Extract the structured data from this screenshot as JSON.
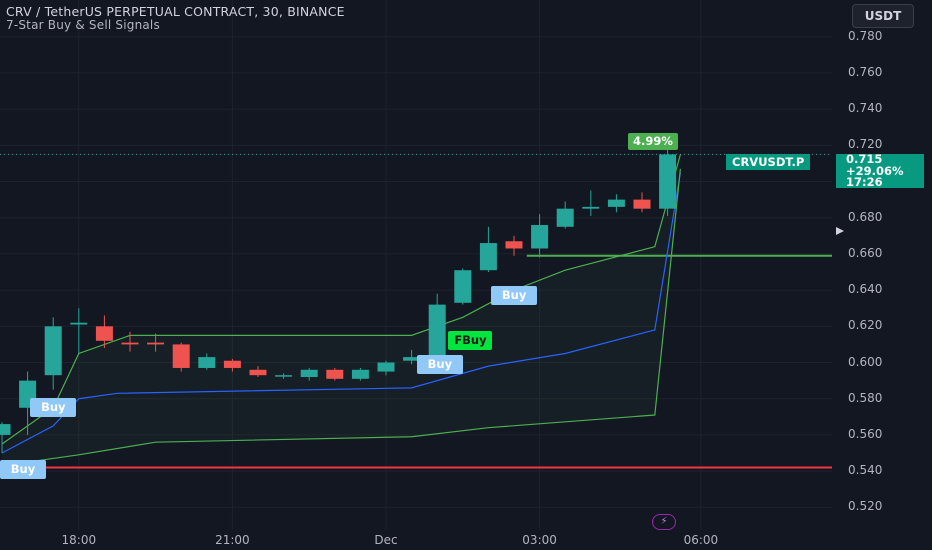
{
  "header": {
    "title": "CRV / TetherUS PERPETUAL CONTRACT, 30, BINANCE",
    "indicator": "7-Star Buy & Sell Signals",
    "currency_button": "USDT"
  },
  "price_tag": {
    "symbol": "CRVUSDT.P",
    "price": "0.715",
    "change": "+29.06%",
    "countdown": "17:26"
  },
  "icons": {
    "play": "play-triangle-icon",
    "alert": "lightning-bolt-icon"
  },
  "colors": {
    "background": "#131722",
    "up": "#26a69a",
    "down": "#ef5350",
    "green_line": "#4caf50",
    "blue_line": "#2962ff",
    "red_line": "#f23645",
    "buy_label": "#90c8f8",
    "fbuy_label": "#00e63c"
  },
  "chart_data": {
    "type": "candlestick",
    "title": "CRV / TetherUS PERPETUAL CONTRACT, 30, BINANCE",
    "y_ticks": [
      "0.780",
      "0.760",
      "0.740",
      "0.720",
      "0.700",
      "0.680",
      "0.660",
      "0.640",
      "0.620",
      "0.600",
      "0.580",
      "0.560",
      "0.540",
      "0.520"
    ],
    "ylim": [
      0.513,
      0.792
    ],
    "x_ticks": [
      {
        "label": "18:00",
        "index": 3
      },
      {
        "label": "21:00",
        "index": 9
      },
      {
        "label": "Dec",
        "index": 15
      },
      {
        "label": "03:00",
        "index": 21
      },
      {
        "label": "06:00",
        "index": 27.3
      }
    ],
    "candles": [
      {
        "o": 0.56,
        "h": 0.567,
        "l": 0.55,
        "c": 0.566
      },
      {
        "o": 0.575,
        "h": 0.595,
        "l": 0.56,
        "c": 0.59
      },
      {
        "o": 0.593,
        "h": 0.625,
        "l": 0.585,
        "c": 0.62
      },
      {
        "o": 0.621,
        "h": 0.63,
        "l": 0.605,
        "c": 0.622
      },
      {
        "o": 0.62,
        "h": 0.626,
        "l": 0.608,
        "c": 0.612
      },
      {
        "o": 0.611,
        "h": 0.617,
        "l": 0.606,
        "c": 0.61
      },
      {
        "o": 0.611,
        "h": 0.616,
        "l": 0.606,
        "c": 0.61
      },
      {
        "o": 0.61,
        "h": 0.611,
        "l": 0.595,
        "c": 0.597
      },
      {
        "o": 0.597,
        "h": 0.605,
        "l": 0.596,
        "c": 0.603
      },
      {
        "o": 0.601,
        "h": 0.602,
        "l": 0.595,
        "c": 0.597
      },
      {
        "o": 0.596,
        "h": 0.598,
        "l": 0.592,
        "c": 0.593
      },
      {
        "o": 0.593,
        "h": 0.594,
        "l": 0.591,
        "c": 0.593
      },
      {
        "o": 0.592,
        "h": 0.597,
        "l": 0.59,
        "c": 0.596
      },
      {
        "o": 0.596,
        "h": 0.597,
        "l": 0.59,
        "c": 0.591
      },
      {
        "o": 0.591,
        "h": 0.597,
        "l": 0.59,
        "c": 0.596
      },
      {
        "o": 0.595,
        "h": 0.601,
        "l": 0.593,
        "c": 0.6
      },
      {
        "o": 0.601,
        "h": 0.607,
        "l": 0.599,
        "c": 0.603
      },
      {
        "o": 0.603,
        "h": 0.638,
        "l": 0.6,
        "c": 0.632
      },
      {
        "o": 0.633,
        "h": 0.652,
        "l": 0.632,
        "c": 0.651
      },
      {
        "o": 0.651,
        "h": 0.675,
        "l": 0.65,
        "c": 0.666
      },
      {
        "o": 0.667,
        "h": 0.67,
        "l": 0.659,
        "c": 0.663
      },
      {
        "o": 0.663,
        "h": 0.682,
        "l": 0.658,
        "c": 0.676
      },
      {
        "o": 0.675,
        "h": 0.689,
        "l": 0.674,
        "c": 0.685
      },
      {
        "o": 0.685,
        "h": 0.695,
        "l": 0.681,
        "c": 0.686
      },
      {
        "o": 0.686,
        "h": 0.693,
        "l": 0.683,
        "c": 0.69
      },
      {
        "o": 0.69,
        "h": 0.694,
        "l": 0.683,
        "c": 0.685
      },
      {
        "o": 0.685,
        "h": 0.722,
        "l": 0.681,
        "c": 0.715
      }
    ],
    "lines": {
      "upper_green": [
        {
          "i": 0.0,
          "y": 0.555
        },
        {
          "i": 2.0,
          "y": 0.575
        },
        {
          "i": 3.0,
          "y": 0.605
        },
        {
          "i": 5.0,
          "y": 0.615
        },
        {
          "i": 16.0,
          "y": 0.615
        },
        {
          "i": 18.0,
          "y": 0.625
        },
        {
          "i": 20.0,
          "y": 0.64
        },
        {
          "i": 22.0,
          "y": 0.651
        },
        {
          "i": 25.5,
          "y": 0.664
        },
        {
          "i": 26.5,
          "y": 0.715
        }
      ],
      "blue": [
        {
          "i": 0.0,
          "y": 0.55
        },
        {
          "i": 2.0,
          "y": 0.565
        },
        {
          "i": 3.0,
          "y": 0.58
        },
        {
          "i": 4.5,
          "y": 0.583
        },
        {
          "i": 16.0,
          "y": 0.586
        },
        {
          "i": 17.0,
          "y": 0.59
        },
        {
          "i": 19.0,
          "y": 0.598
        },
        {
          "i": 22.0,
          "y": 0.605
        },
        {
          "i": 25.5,
          "y": 0.618
        },
        {
          "i": 26.5,
          "y": 0.705
        }
      ],
      "lower_green": [
        {
          "i": 0.0,
          "y": 0.543
        },
        {
          "i": 3.0,
          "y": 0.549
        },
        {
          "i": 6.0,
          "y": 0.556
        },
        {
          "i": 16.0,
          "y": 0.559
        },
        {
          "i": 19.0,
          "y": 0.564
        },
        {
          "i": 25.5,
          "y": 0.571
        },
        {
          "i": 26.5,
          "y": 0.707
        }
      ]
    },
    "horizontal_lines": [
      {
        "y": 0.659,
        "from": 20.5,
        "color": "#4caf50"
      },
      {
        "y": 0.542,
        "from": 0,
        "color": "#f23645"
      }
    ],
    "last_price_line": 0.715,
    "signals": [
      {
        "label": "Buy",
        "type": "buy",
        "i": -0.3,
        "y": 0.544
      },
      {
        "label": "Buy",
        "type": "buy",
        "i": 2.2,
        "y": 0.578
      },
      {
        "label": "Buy",
        "type": "buy",
        "i": 17.3,
        "y": 0.602
      },
      {
        "label": "FBuy",
        "type": "fbuy",
        "i": 18.3,
        "y": 0.615
      },
      {
        "label": "Buy",
        "type": "buy",
        "i": 20.2,
        "y": 0.64
      }
    ],
    "annotation": {
      "label": "4.99%",
      "i": 26.5
    }
  }
}
